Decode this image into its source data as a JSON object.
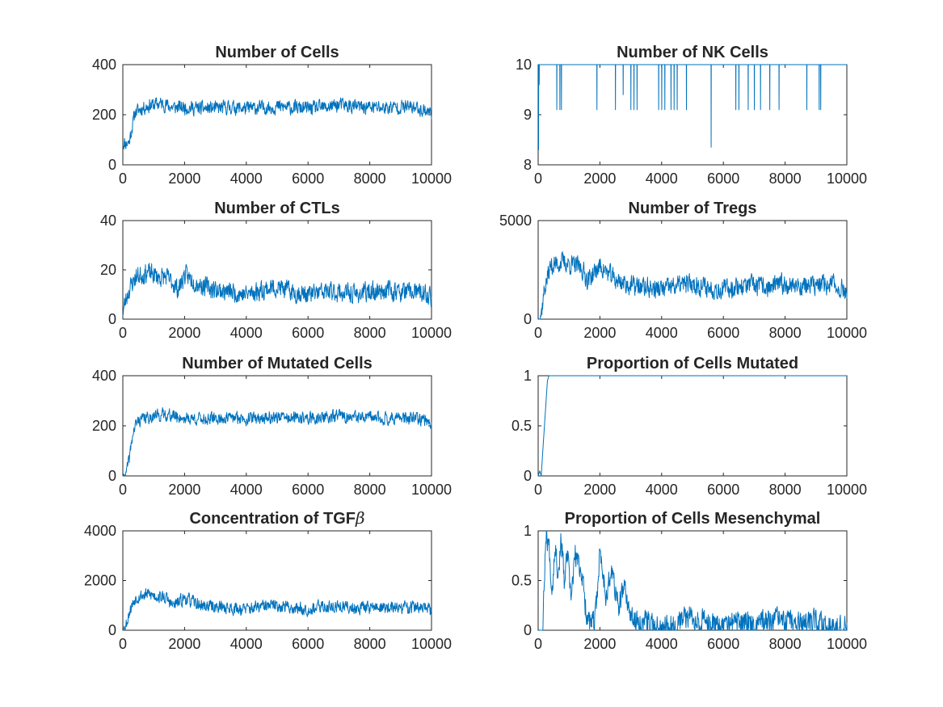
{
  "line_color": "#0072BD",
  "chart_data": [
    {
      "type": "line",
      "title": "Number of Cells",
      "xlim": [
        0,
        10000
      ],
      "ylim": [
        0,
        400
      ],
      "xticks": [
        0,
        2000,
        4000,
        6000,
        8000,
        10000
      ],
      "yticks": [
        0,
        200,
        400
      ],
      "series": [
        {
          "x": [
            0,
            100,
            200,
            300,
            400,
            600,
            800,
            1000,
            1200,
            1400,
            1600,
            2000,
            2500,
            3000,
            3500,
            4000,
            4500,
            5000,
            5500,
            6000,
            6500,
            7000,
            7500,
            8000,
            8500,
            9000,
            9500,
            10000
          ],
          "y": [
            90,
            85,
            90,
            150,
            210,
            225,
            235,
            240,
            245,
            240,
            230,
            230,
            225,
            225,
            230,
            225,
            228,
            232,
            228,
            225,
            228,
            240,
            232,
            230,
            228,
            232,
            228,
            210
          ],
          "noise": 25,
          "seed": 11
        }
      ]
    },
    {
      "type": "line",
      "title": "Number of NK Cells",
      "xlim": [
        0,
        10000
      ],
      "ylim": [
        8,
        10
      ],
      "xticks": [
        0,
        2000,
        4000,
        6000,
        8000,
        10000
      ],
      "yticks": [
        8,
        9,
        10
      ],
      "series": [
        {
          "x": [
            0,
            10000
          ],
          "y": [
            10,
            10
          ],
          "dips": [
            [
              10,
              8.3
            ],
            [
              30,
              9.6
            ],
            [
              600,
              9.1
            ],
            [
              700,
              9.1
            ],
            [
              750,
              9.1
            ],
            [
              1900,
              9.1
            ],
            [
              2500,
              9.1
            ],
            [
              2750,
              9.4
            ],
            [
              3000,
              9.1
            ],
            [
              3100,
              9.1
            ],
            [
              3200,
              9.1
            ],
            [
              3900,
              9.1
            ],
            [
              4000,
              9.1
            ],
            [
              4100,
              9.1
            ],
            [
              4300,
              9.1
            ],
            [
              4400,
              9.1
            ],
            [
              4500,
              9.1
            ],
            [
              4800,
              9.1
            ],
            [
              5600,
              8.35
            ],
            [
              6400,
              9.1
            ],
            [
              6500,
              9.1
            ],
            [
              6800,
              9.1
            ],
            [
              7000,
              9.1
            ],
            [
              7200,
              9.1
            ],
            [
              7500,
              9.1
            ],
            [
              7800,
              9.1
            ],
            [
              8700,
              9.1
            ],
            [
              9100,
              9.1
            ],
            [
              9150,
              9.1
            ]
          ]
        }
      ]
    },
    {
      "type": "line",
      "title": "Number of CTLs",
      "xlim": [
        0,
        10000
      ],
      "ylim": [
        0,
        40
      ],
      "xticks": [
        0,
        2000,
        4000,
        6000,
        8000,
        10000
      ],
      "yticks": [
        0,
        20,
        40
      ],
      "series": [
        {
          "x": [
            0,
            100,
            200,
            400,
            600,
            800,
            1000,
            1200,
            1400,
            1600,
            1800,
            2000,
            2500,
            3000,
            3500,
            4000,
            4500,
            5000,
            5500,
            6000,
            6500,
            7000,
            7500,
            8000,
            8500,
            9000,
            9500,
            10000
          ],
          "y": [
            3,
            8,
            12,
            17,
            18,
            19,
            18,
            17,
            17,
            15,
            12,
            18,
            14,
            12,
            11,
            10,
            12,
            13,
            11,
            10,
            11,
            11,
            10,
            11,
            12,
            11,
            11,
            9
          ],
          "noise": 3.5,
          "seed": 23
        }
      ]
    },
    {
      "type": "line",
      "title": "Number of Tregs",
      "xlim": [
        0,
        10000
      ],
      "ylim": [
        0,
        5000
      ],
      "xticks": [
        0,
        2000,
        4000,
        6000,
        8000,
        10000
      ],
      "yticks": [
        0,
        5000
      ],
      "series": [
        {
          "x": [
            0,
            100,
            200,
            400,
            600,
            800,
            1000,
            1200,
            1400,
            1600,
            1800,
            2000,
            2500,
            3000,
            3500,
            4000,
            4500,
            5000,
            5500,
            6000,
            6500,
            7000,
            7500,
            8000,
            8500,
            9000,
            9500,
            10000
          ],
          "y": [
            0,
            300,
            1500,
            2700,
            2800,
            2900,
            2800,
            2700,
            2600,
            2000,
            2300,
            2700,
            2000,
            1700,
            1600,
            1500,
            1700,
            1800,
            1600,
            1500,
            1700,
            1700,
            1600,
            1800,
            1700,
            1700,
            1800,
            1400
          ],
          "noise": 450,
          "seed": 37
        }
      ]
    },
    {
      "type": "line",
      "title": "Number of Mutated Cells",
      "xlim": [
        0,
        10000
      ],
      "ylim": [
        0,
        400
      ],
      "xticks": [
        0,
        2000,
        4000,
        6000,
        8000,
        10000
      ],
      "yticks": [
        0,
        200,
        400
      ],
      "series": [
        {
          "x": [
            0,
            100,
            200,
            300,
            400,
            500,
            700,
            1000,
            1400,
            2000,
            2500,
            3000,
            3500,
            4000,
            4500,
            5000,
            5500,
            6000,
            6500,
            7000,
            7500,
            8000,
            8500,
            9000,
            9500,
            10000
          ],
          "y": [
            0,
            10,
            60,
            150,
            200,
            220,
            230,
            240,
            245,
            230,
            228,
            228,
            232,
            230,
            232,
            235,
            230,
            230,
            232,
            240,
            232,
            232,
            230,
            232,
            228,
            215
          ],
          "noise": 22,
          "seed": 41
        }
      ]
    },
    {
      "type": "line",
      "title": "Proportion of Cells Mutated",
      "xlim": [
        0,
        10000
      ],
      "ylim": [
        0,
        1
      ],
      "xticks": [
        0,
        2000,
        4000,
        6000,
        8000,
        10000
      ],
      "yticks": [
        0,
        0.5,
        1
      ],
      "series": [
        {
          "x": [
            0,
            50,
            100,
            150,
            300,
            350,
            10000
          ],
          "y": [
            0,
            0.05,
            0,
            0.25,
            0.95,
            1,
            1
          ]
        }
      ]
    },
    {
      "type": "line",
      "title": "Concentration of TGF",
      "title_symbol": "β",
      "xlim": [
        0,
        10000
      ],
      "ylim": [
        0,
        4000
      ],
      "xticks": [
        0,
        2000,
        4000,
        6000,
        8000,
        10000
      ],
      "yticks": [
        0,
        2000,
        4000
      ],
      "series": [
        {
          "x": [
            0,
            100,
            200,
            400,
            600,
            800,
            1000,
            1200,
            1400,
            1600,
            1800,
            2000,
            2500,
            3000,
            3500,
            4000,
            4500,
            5000,
            5500,
            6000,
            6500,
            7000,
            7500,
            8000,
            8500,
            9000,
            9500,
            10000
          ],
          "y": [
            50,
            200,
            700,
            1300,
            1400,
            1450,
            1400,
            1350,
            1300,
            1000,
            1100,
            1300,
            1000,
            950,
            900,
            850,
            950,
            1000,
            900,
            850,
            950,
            950,
            900,
            950,
            900,
            900,
            950,
            800
          ],
          "noise": 230,
          "seed": 53
        }
      ]
    },
    {
      "type": "line",
      "title": "Proportion of Cells Mesenchymal",
      "xlim": [
        0,
        10000
      ],
      "ylim": [
        0,
        1
      ],
      "xticks": [
        0,
        2000,
        4000,
        6000,
        8000,
        10000
      ],
      "yticks": [
        0,
        0.5,
        1
      ],
      "series": [
        {
          "x": [
            0,
            150,
            250,
            350,
            450,
            550,
            650,
            750,
            850,
            950,
            1050,
            1200,
            1400,
            1550,
            1700,
            1850,
            2000,
            2200,
            2400,
            2600,
            2800,
            3000,
            3500,
            4000,
            4500,
            5000,
            5500,
            6000,
            6500,
            7000,
            7500,
            8000,
            8500,
            9000,
            9500,
            10000
          ],
          "y": [
            0,
            0,
            1,
            0.85,
            0.4,
            0.9,
            0.55,
            0.95,
            0.45,
            0.8,
            0.3,
            0.75,
            0.6,
            0.2,
            0.05,
            0.1,
            0.8,
            0.35,
            0.6,
            0.2,
            0.45,
            0.1,
            0.08,
            0.05,
            0.08,
            0.15,
            0.07,
            0.05,
            0.08,
            0.07,
            0.1,
            0.08,
            0.06,
            0.07,
            0.06,
            0.05
          ],
          "noise": 0.11,
          "seed": 67,
          "clip_min": 0,
          "clip_max": 1
        }
      ]
    }
  ]
}
